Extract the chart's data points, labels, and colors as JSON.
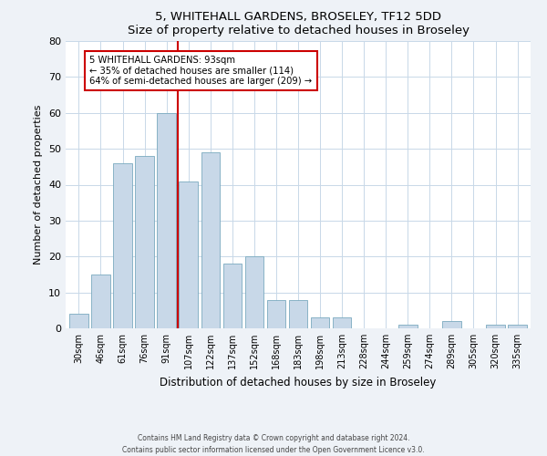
{
  "title": "5, WHITEHALL GARDENS, BROSELEY, TF12 5DD",
  "subtitle": "Size of property relative to detached houses in Broseley",
  "xlabel": "Distribution of detached houses by size in Broseley",
  "ylabel": "Number of detached properties",
  "categories": [
    "30sqm",
    "46sqm",
    "61sqm",
    "76sqm",
    "91sqm",
    "107sqm",
    "122sqm",
    "137sqm",
    "152sqm",
    "168sqm",
    "183sqm",
    "198sqm",
    "213sqm",
    "228sqm",
    "244sqm",
    "259sqm",
    "274sqm",
    "289sqm",
    "305sqm",
    "320sqm",
    "335sqm"
  ],
  "values": [
    4,
    15,
    46,
    48,
    60,
    41,
    49,
    18,
    20,
    8,
    8,
    3,
    3,
    0,
    0,
    1,
    0,
    2,
    0,
    1,
    1
  ],
  "bar_color": "#c8d8e8",
  "bar_edgecolor": "#7aaabf",
  "ylim": [
    0,
    80
  ],
  "yticks": [
    0,
    10,
    20,
    30,
    40,
    50,
    60,
    70,
    80
  ],
  "property_label": "5 WHITEHALL GARDENS: 93sqm",
  "annotation_line1": "← 35% of detached houses are smaller (114)",
  "annotation_line2": "64% of semi-detached houses are larger (209) →",
  "annotation_box_color": "#ffffff",
  "annotation_box_edgecolor": "#cc0000",
  "vline_color": "#cc0000",
  "vline_x": 4.5,
  "footer_line1": "Contains HM Land Registry data © Crown copyright and database right 2024.",
  "footer_line2": "Contains public sector information licensed under the Open Government Licence v3.0.",
  "background_color": "#eef2f7",
  "plot_background": "#ffffff",
  "grid_color": "#c8d8e8"
}
